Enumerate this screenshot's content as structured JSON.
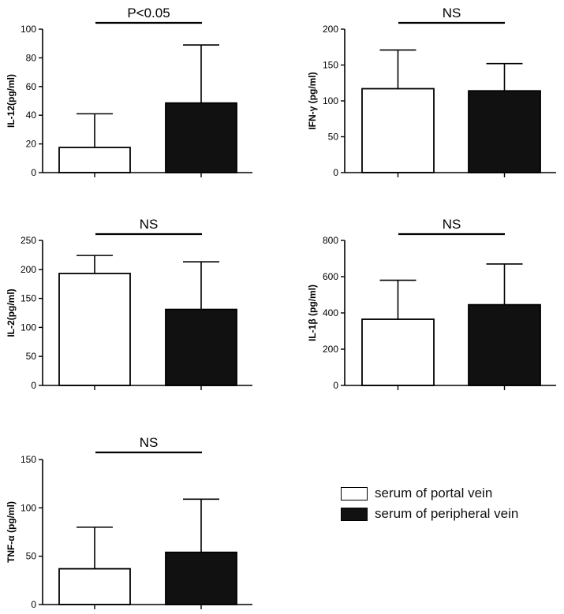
{
  "colors": {
    "portal": "#ffffff",
    "peripheral": "#111111",
    "axis": "#000000"
  },
  "legend": [
    {
      "label": "serum of portal vein",
      "color": "#ffffff"
    },
    {
      "label": "serum of peripheral vein",
      "color": "#111111"
    }
  ],
  "chart_data": [
    {
      "type": "bar",
      "ylabel": "IL-12(pg/ml)",
      "categories": [
        "serum of portal vein",
        "serum of peripheral vein"
      ],
      "values": [
        17.5,
        48.5
      ],
      "error_upper": [
        41,
        89
      ],
      "ylim": [
        0,
        100
      ],
      "yticks": [
        0,
        20,
        40,
        60,
        80,
        100
      ],
      "significance": "P<0.05"
    },
    {
      "type": "bar",
      "ylabel": "IFN-γ (pg/ml)",
      "categories": [
        "serum of portal vein",
        "serum of peripheral vein"
      ],
      "values": [
        117,
        114
      ],
      "error_upper": [
        171,
        152
      ],
      "ylim": [
        0,
        200
      ],
      "yticks": [
        0,
        50,
        100,
        150,
        200
      ],
      "significance": "NS"
    },
    {
      "type": "bar",
      "ylabel": "IL-2(pg/ml)",
      "categories": [
        "serum of portal vein",
        "serum of peripheral vein"
      ],
      "values": [
        193,
        131
      ],
      "error_upper": [
        224,
        213
      ],
      "ylim": [
        0,
        250
      ],
      "yticks": [
        0,
        50,
        100,
        150,
        200,
        250
      ],
      "significance": "NS"
    },
    {
      "type": "bar",
      "ylabel": "IL-1β (pg/ml)",
      "categories": [
        "serum of portal vein",
        "serum of peripheral vein"
      ],
      "values": [
        365,
        445
      ],
      "error_upper": [
        580,
        670
      ],
      "ylim": [
        0,
        800
      ],
      "yticks": [
        0,
        200,
        400,
        600,
        800
      ],
      "significance": "NS"
    },
    {
      "type": "bar",
      "ylabel": "TNF-α (pg/ml)",
      "categories": [
        "serum of portal vein",
        "serum of peripheral vein"
      ],
      "values": [
        37,
        54
      ],
      "error_upper": [
        80,
        109
      ],
      "ylim": [
        0,
        150
      ],
      "yticks": [
        0,
        50,
        100,
        150
      ],
      "significance": "NS"
    }
  ]
}
